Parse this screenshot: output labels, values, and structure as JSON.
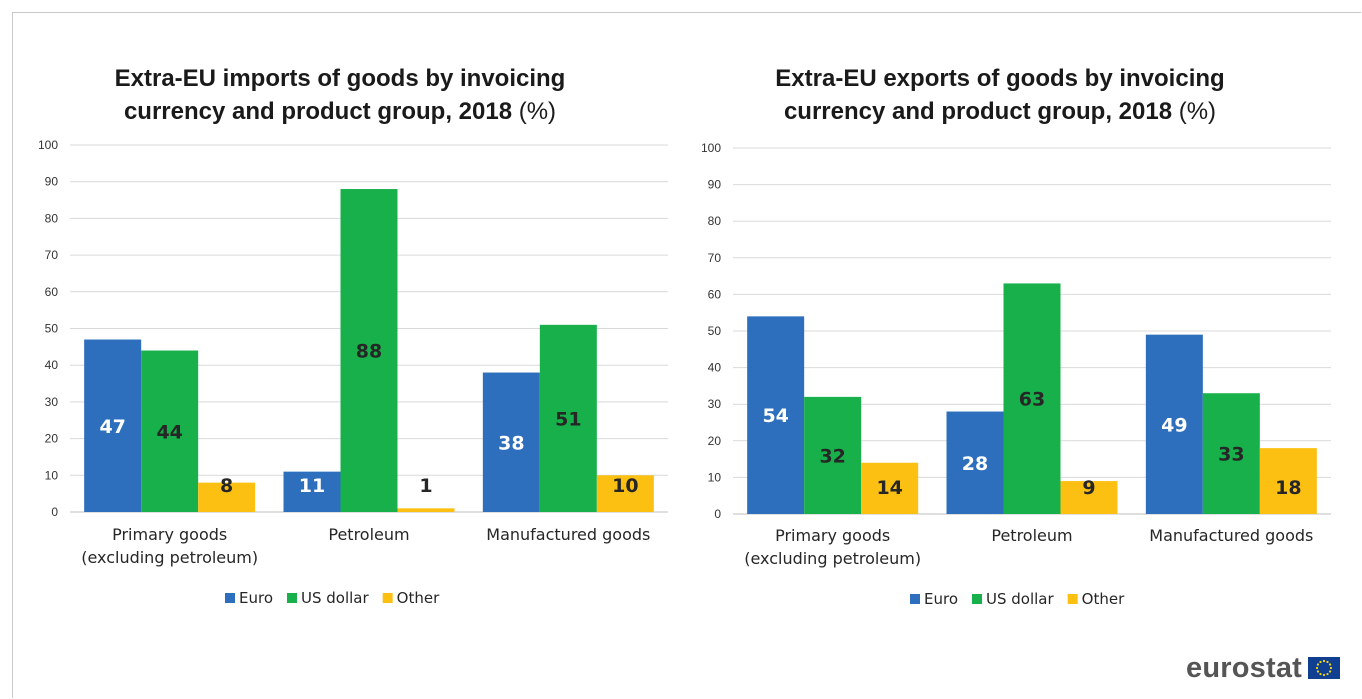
{
  "colors": {
    "Euro": "#2e6fbd",
    "US dollar": "#17b04b",
    "Other": "#fbc012"
  },
  "logo": {
    "text": "eurostat",
    "icon": "eu-flag-icon"
  },
  "chart_data": [
    {
      "type": "bar",
      "title_lines": [
        "Extra-EU imports of goods by invoicing",
        "currency and product group, 2018"
      ],
      "title_unit": "(%)",
      "categories": [
        [
          "Primary goods",
          "(excluding petroleum)"
        ],
        [
          "Petroleum"
        ],
        [
          "Manufactured goods"
        ]
      ],
      "series": [
        {
          "name": "Euro",
          "values": [
            47,
            11,
            38
          ]
        },
        {
          "name": "US dollar",
          "values": [
            44,
            88,
            51
          ]
        },
        {
          "name": "Other",
          "values": [
            8,
            1,
            10
          ]
        }
      ],
      "ylim": [
        0,
        100
      ],
      "yticks": [
        0,
        10,
        20,
        30,
        40,
        50,
        60,
        70,
        80,
        90,
        100
      ],
      "grid": true,
      "legend": "bottom"
    },
    {
      "type": "bar",
      "title_lines": [
        "Extra-EU exports of goods by invoicing",
        "currency and product group, 2018"
      ],
      "title_unit": "(%)",
      "categories": [
        [
          "Primary goods",
          "(excluding petroleum)"
        ],
        [
          "Petroleum"
        ],
        [
          "Manufactured goods"
        ]
      ],
      "series": [
        {
          "name": "Euro",
          "values": [
            54,
            28,
            49
          ]
        },
        {
          "name": "US dollar",
          "values": [
            32,
            63,
            33
          ]
        },
        {
          "name": "Other",
          "values": [
            14,
            9,
            18
          ]
        }
      ],
      "ylim": [
        0,
        100
      ],
      "yticks": [
        0,
        10,
        20,
        30,
        40,
        50,
        60,
        70,
        80,
        90,
        100
      ],
      "grid": true,
      "legend": "bottom"
    }
  ]
}
